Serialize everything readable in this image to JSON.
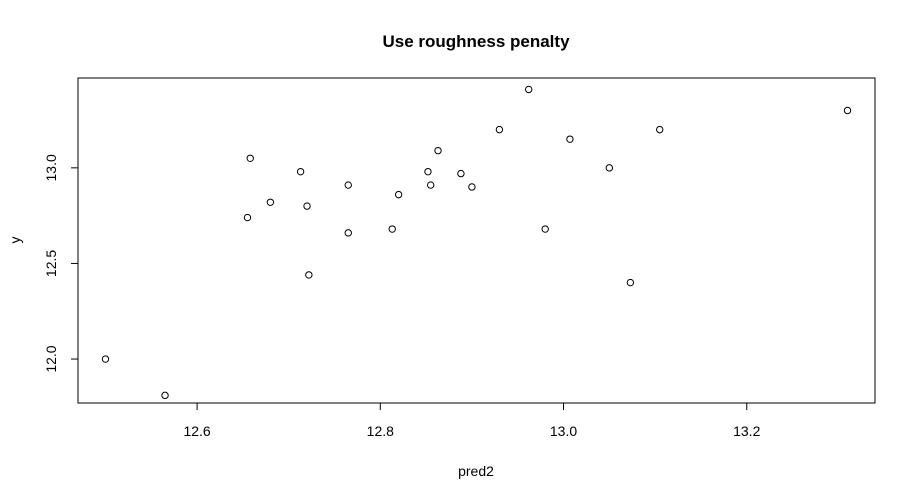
{
  "chart_data": {
    "type": "scatter",
    "title": "Use roughness penalty",
    "xlabel": "pred2",
    "ylabel": "y",
    "xlim": [
      12.47,
      13.34
    ],
    "ylim": [
      11.77,
      13.47
    ],
    "xticks": [
      12.6,
      12.8,
      13.0,
      13.2
    ],
    "xtick_labels": [
      "12.6",
      "12.8",
      "13.0",
      "13.2"
    ],
    "yticks": [
      12.0,
      12.5,
      13.0
    ],
    "ytick_labels": [
      "12.0",
      "12.5",
      "13.0"
    ],
    "grid": false,
    "marker": "open-circle",
    "points": [
      {
        "x": 12.5,
        "y": 12.0
      },
      {
        "x": 12.565,
        "y": 11.81
      },
      {
        "x": 12.655,
        "y": 12.74
      },
      {
        "x": 12.658,
        "y": 13.05
      },
      {
        "x": 12.68,
        "y": 12.82
      },
      {
        "x": 12.713,
        "y": 12.98
      },
      {
        "x": 12.72,
        "y": 12.8
      },
      {
        "x": 12.722,
        "y": 12.44
      },
      {
        "x": 12.765,
        "y": 12.91
      },
      {
        "x": 12.765,
        "y": 12.66
      },
      {
        "x": 12.813,
        "y": 12.68
      },
      {
        "x": 12.82,
        "y": 12.86
      },
      {
        "x": 12.852,
        "y": 12.98
      },
      {
        "x": 12.855,
        "y": 12.91
      },
      {
        "x": 12.863,
        "y": 13.09
      },
      {
        "x": 12.888,
        "y": 12.97
      },
      {
        "x": 12.9,
        "y": 12.9
      },
      {
        "x": 12.93,
        "y": 13.2
      },
      {
        "x": 12.962,
        "y": 13.41
      },
      {
        "x": 12.98,
        "y": 12.68
      },
      {
        "x": 13.007,
        "y": 13.15
      },
      {
        "x": 13.05,
        "y": 13.0
      },
      {
        "x": 13.073,
        "y": 12.4
      },
      {
        "x": 13.105,
        "y": 13.2
      },
      {
        "x": 13.31,
        "y": 13.3
      }
    ]
  }
}
